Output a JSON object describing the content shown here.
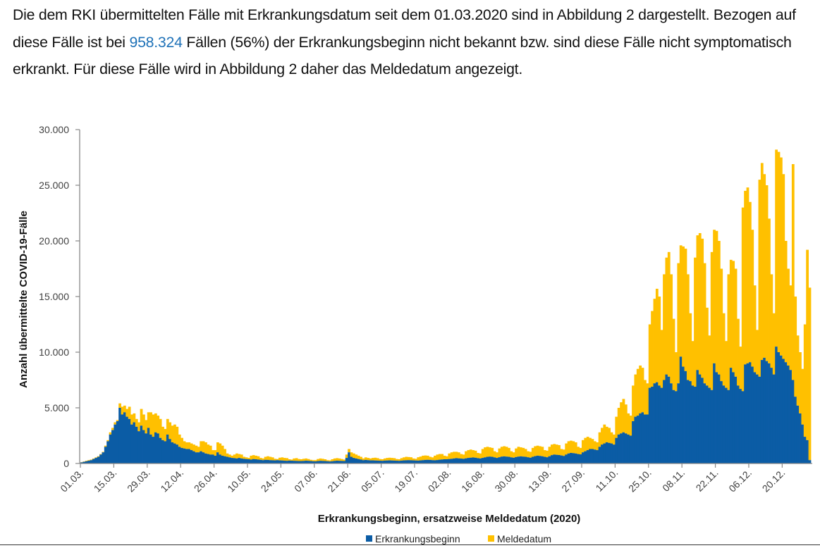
{
  "paragraph": {
    "part1": "Die dem RKI übermittelten Fälle mit Erkrankungsdatum seit dem 01.03.2020 sind in Abbildung 2 dargestellt. Bezogen auf diese Fälle ist bei ",
    "highlight": "958.324",
    "part2": " Fällen (56%) der Erkrankungsbeginn nicht bekannt bzw. sind diese Fälle nicht symptomatisch erkrankt. Für diese Fälle wird in Abbildung 2 daher das Meldedatum angezeigt.",
    "highlight_color": "#1f72b8"
  },
  "chart_data": {
    "type": "bar",
    "stacked": true,
    "xlabel": "Erkrankungsbeginn, ersatzweise Meldedatum (2020)",
    "ylabel": "Anzahl übermittelte COVID-19-Fälle",
    "ylim": [
      0,
      30000
    ],
    "y_ticks": [
      "0",
      "5.000",
      "10.000",
      "15.000",
      "20.000",
      "25.000",
      "30.000"
    ],
    "x_range": [
      "01.03.",
      "31.12."
    ],
    "x_ticks": [
      "01.03.",
      "15.03.",
      "29.03.",
      "12.04.",
      "26.04.",
      "10.05.",
      "24.05.",
      "07.06.",
      "21.06.",
      "05.07.",
      "19.07.",
      "02.08.",
      "16.08.",
      "30.08.",
      "13.09.",
      "27.09.",
      "11.10.",
      "25.10.",
      "08.11.",
      "22.11.",
      "06.12.",
      "20.12."
    ],
    "grid": false,
    "legend_position": "bottom",
    "series": [
      {
        "name": "Erkrankungsbeginn",
        "color": "#0b5ca5",
        "values": [
          100,
          150,
          200,
          250,
          300,
          400,
          500,
          600,
          800,
          1000,
          1500,
          2000,
          2600,
          3000,
          3500,
          3800,
          5000,
          4400,
          4600,
          4200,
          4000,
          3500,
          3700,
          3300,
          2900,
          3400,
          3000,
          2700,
          3200,
          2600,
          2400,
          2800,
          2700,
          2300,
          2100,
          2000,
          2600,
          2200,
          1900,
          1800,
          1700,
          1500,
          1400,
          1350,
          1300,
          1300,
          1200,
          1100,
          1000,
          1000,
          1100,
          1000,
          900,
          850,
          800,
          800,
          700,
          1000,
          800,
          700,
          650,
          600,
          550,
          500,
          480,
          450,
          500,
          450,
          420,
          400,
          380,
          350,
          400,
          380,
          350,
          330,
          300,
          330,
          320,
          300,
          290,
          280,
          300,
          280,
          270,
          250,
          240,
          260,
          250,
          240,
          230,
          220,
          220,
          230,
          250,
          240,
          220,
          200,
          190,
          220,
          240,
          230,
          220,
          200,
          180,
          200,
          230,
          250,
          240,
          230,
          220,
          500,
          1000,
          600,
          500,
          450,
          400,
          350,
          300,
          320,
          300,
          280,
          280,
          270,
          260,
          250,
          240,
          260,
          270,
          280,
          270,
          260,
          250,
          240,
          260,
          280,
          290,
          300,
          290,
          280,
          270,
          260,
          280,
          300,
          320,
          330,
          320,
          300,
          290,
          310,
          340,
          360,
          380,
          380,
          400,
          420,
          450,
          480,
          460,
          440,
          420,
          460,
          500,
          520,
          540,
          520,
          480,
          450,
          500,
          550,
          600,
          620,
          600,
          550,
          500,
          560,
          620,
          640,
          620,
          600,
          550,
          520,
          580,
          620,
          640,
          620,
          600,
          560,
          520,
          600,
          660,
          700,
          680,
          650,
          600,
          560,
          650,
          750,
          800,
          780,
          760,
          720,
          680,
          800,
          900,
          950,
          930,
          900,
          850,
          820,
          1000,
          1100,
          1200,
          1300,
          1300,
          1250,
          1200,
          1500,
          1700,
          1800,
          1900,
          1850,
          1800,
          1700,
          2300,
          2600,
          2700,
          2800,
          2700,
          2600,
          2500,
          3800,
          4200,
          4300,
          4500,
          4600,
          4400,
          4400,
          6800,
          6900,
          7200,
          7300,
          7000,
          6800,
          7500,
          8000,
          7800,
          7200,
          6600,
          6500,
          7200,
          9600,
          8700,
          8300,
          7500,
          7400,
          7000,
          6900,
          8400,
          8000,
          7700,
          7200,
          7000,
          6800,
          6600,
          9000,
          8200,
          8000,
          7400,
          7000,
          6800,
          6600,
          8600,
          8200,
          7800,
          7000,
          6700,
          6500,
          8900,
          9000,
          9100,
          8700,
          8200,
          8000,
          7800,
          9300,
          9500,
          9200,
          9000,
          8600,
          8000,
          10500,
          10000,
          9700,
          9400,
          9100,
          8800,
          8400,
          7500,
          6000,
          5200,
          4500,
          3500,
          2400,
          2100,
          300
        ]
      },
      {
        "name": "Meldedatum",
        "color": "#ffc000",
        "totals": [
          120,
          180,
          250,
          300,
          350,
          450,
          550,
          650,
          850,
          1050,
          1600,
          2100,
          2800,
          3200,
          3700,
          3900,
          5400,
          5100,
          5200,
          4900,
          5100,
          4400,
          4500,
          4000,
          3700,
          4900,
          4400,
          3900,
          4600,
          4600,
          4400,
          4500,
          4300,
          4000,
          3300,
          3100,
          4000,
          3700,
          3400,
          3500,
          3300,
          2600,
          2300,
          2000,
          1900,
          1900,
          1800,
          1700,
          1600,
          1500,
          2000,
          2000,
          1900,
          1700,
          1600,
          1200,
          1200,
          1900,
          1800,
          1600,
          1300,
          900,
          800,
          700,
          800,
          900,
          850,
          800,
          600,
          550,
          500,
          700,
          750,
          700,
          650,
          500,
          450,
          600,
          650,
          600,
          550,
          420,
          400,
          520,
          550,
          500,
          480,
          380,
          350,
          450,
          480,
          400,
          380,
          420,
          450,
          400,
          330,
          300,
          300,
          400,
          450,
          420,
          380,
          300,
          280,
          380,
          450,
          480,
          450,
          400,
          350,
          800,
          1300,
          1000,
          900,
          800,
          700,
          600,
          450,
          550,
          500,
          450,
          500,
          520,
          480,
          400,
          380,
          450,
          500,
          520,
          500,
          480,
          400,
          380,
          480,
          550,
          600,
          580,
          560,
          450,
          420,
          560,
          620,
          700,
          720,
          700,
          600,
          550,
          700,
          800,
          850,
          850,
          700,
          650,
          900,
          1000,
          1050,
          1050,
          1000,
          850,
          800,
          1100,
          1200,
          1250,
          1200,
          1150,
          950,
          900,
          1300,
          1450,
          1500,
          1450,
          1400,
          1100,
          1000,
          1350,
          1500,
          1550,
          1500,
          1400,
          1100,
          1000,
          1350,
          1500,
          1450,
          1400,
          1300,
          1100,
          1050,
          1400,
          1550,
          1600,
          1550,
          1500,
          1200,
          1150,
          1500,
          1700,
          1750,
          1700,
          1650,
          1300,
          1250,
          1800,
          2000,
          2050,
          2000,
          1900,
          1500,
          1400,
          2100,
          2300,
          2400,
          2300,
          2200,
          2000,
          1900,
          2800,
          3200,
          3500,
          3300,
          3200,
          2800,
          2600,
          4200,
          5000,
          5500,
          5800,
          5300,
          4500,
          4300,
          7000,
          8000,
          8500,
          8800,
          8600,
          7500,
          7200,
          12500,
          13700,
          14800,
          15700,
          15000,
          12000,
          17000,
          18500,
          19000,
          17000,
          13000,
          10000,
          18000,
          19600,
          19500,
          19300,
          17000,
          13500,
          11000,
          18500,
          20500,
          20700,
          20200,
          18000,
          14000,
          11500,
          19000,
          21000,
          20900,
          20000,
          17500,
          13500,
          11000,
          17000,
          18300,
          18200,
          17500,
          13000,
          10500,
          23000,
          24500,
          24800,
          23500,
          21000,
          16000,
          12000,
          25500,
          27000,
          26000,
          25000,
          22000,
          17000,
          13500,
          28200,
          28000,
          27500,
          26000,
          20000,
          17500,
          16000,
          26900,
          15000,
          11500,
          10000,
          8500,
          12500,
          19200,
          15800
        ]
      }
    ]
  }
}
